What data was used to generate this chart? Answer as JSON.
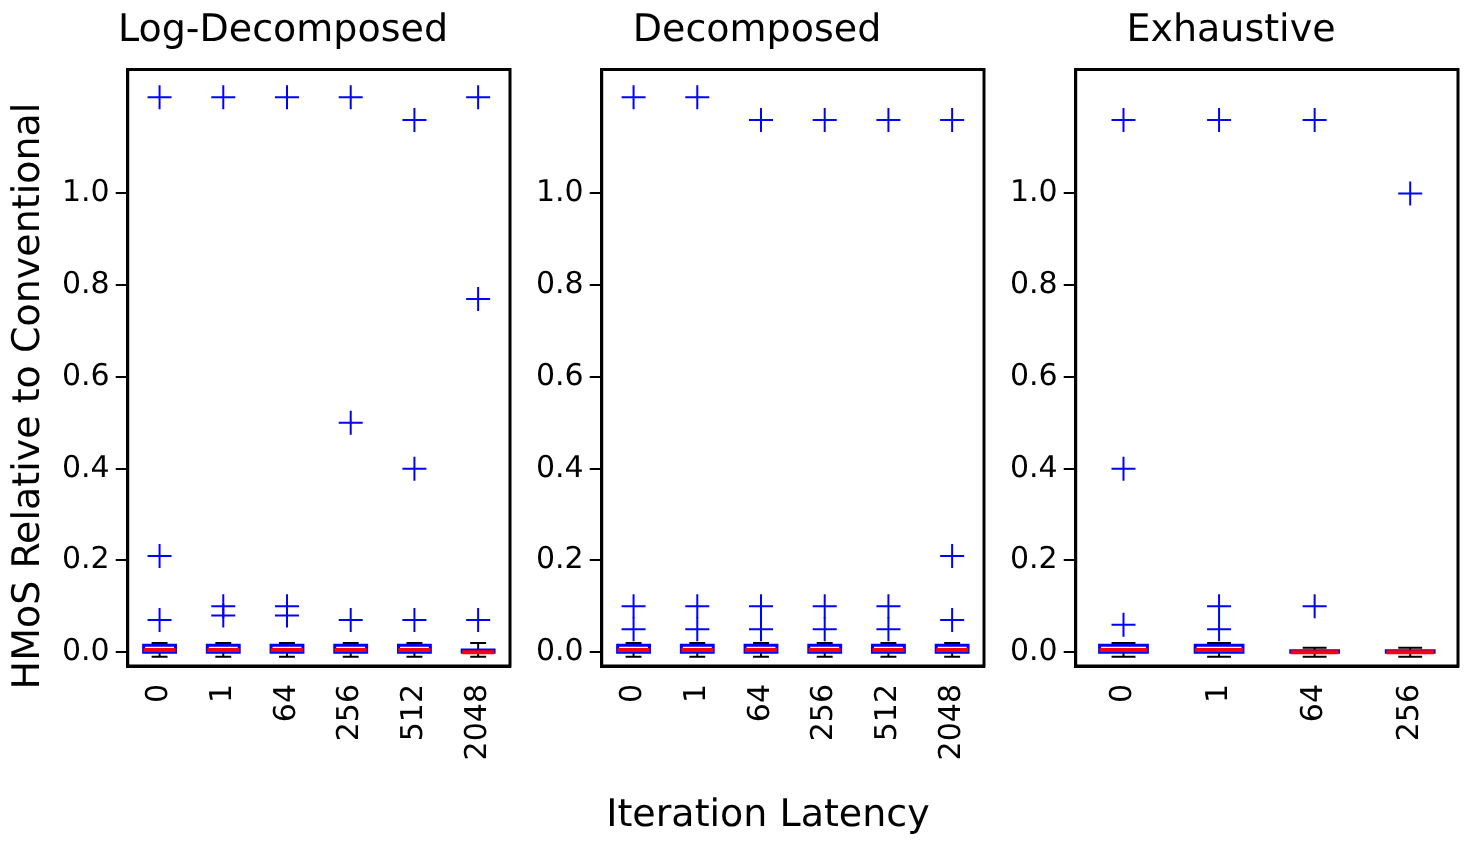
{
  "chart_data": [
    {
      "type": "box",
      "title": "Log-Decomposed",
      "ylabel": "HMoS Relative to Conventional",
      "categories": [
        "0",
        "1",
        "64",
        "256",
        "512",
        "2048"
      ],
      "ylim": [
        -0.03,
        1.27
      ],
      "yticks": [
        {
          "value": 0,
          "label": "0.0"
        },
        {
          "value": 0.2,
          "label": "0.2"
        },
        {
          "value": 0.4,
          "label": "0.4"
        },
        {
          "value": 0.6,
          "label": "0.6"
        },
        {
          "value": 0.8,
          "label": "0.8"
        },
        {
          "value": 1,
          "label": "1.0"
        }
      ],
      "grid": false,
      "boxes": [
        {
          "low": -0.01,
          "q1": 0,
          "median": 0.005,
          "q3": 0.015,
          "high": 0.02,
          "outliers": [
            1.21,
            0.21,
            0.07
          ]
        },
        {
          "low": -0.01,
          "q1": 0,
          "median": 0.005,
          "q3": 0.015,
          "high": 0.02,
          "outliers": [
            1.21,
            0.1,
            0.08
          ]
        },
        {
          "low": -0.01,
          "q1": 0,
          "median": 0.005,
          "q3": 0.015,
          "high": 0.02,
          "outliers": [
            1.21,
            0.1,
            0.08
          ]
        },
        {
          "low": -0.01,
          "q1": 0,
          "median": 0.005,
          "q3": 0.015,
          "high": 0.02,
          "outliers": [
            1.21,
            0.5,
            0.07
          ]
        },
        {
          "low": -0.01,
          "q1": 0,
          "median": 0.005,
          "q3": 0.015,
          "high": 0.02,
          "outliers": [
            1.16,
            0.4,
            0.07
          ]
        },
        {
          "low": -0.01,
          "q1": 0,
          "median": 0,
          "q3": 0.005,
          "high": 0.02,
          "outliers": [
            1.21,
            0.77,
            0.07
          ]
        }
      ]
    },
    {
      "type": "box",
      "title": "Decomposed",
      "xlabel": "Iteration Latency",
      "categories": [
        "0",
        "1",
        "64",
        "256",
        "512",
        "2048"
      ],
      "ylim": [
        -0.03,
        1.27
      ],
      "yticks": [
        {
          "value": 0,
          "label": "0.0"
        },
        {
          "value": 0.2,
          "label": "0.2"
        },
        {
          "value": 0.4,
          "label": "0.4"
        },
        {
          "value": 0.6,
          "label": "0.6"
        },
        {
          "value": 0.8,
          "label": "0.8"
        },
        {
          "value": 1,
          "label": "1.0"
        }
      ],
      "grid": false,
      "boxes": [
        {
          "low": -0.01,
          "q1": 0,
          "median": 0.005,
          "q3": 0.015,
          "high": 0.02,
          "outliers": [
            1.21,
            0.1,
            0.05
          ]
        },
        {
          "low": -0.01,
          "q1": 0,
          "median": 0.005,
          "q3": 0.015,
          "high": 0.02,
          "outliers": [
            1.21,
            0.1,
            0.05
          ]
        },
        {
          "low": -0.01,
          "q1": 0,
          "median": 0.005,
          "q3": 0.015,
          "high": 0.02,
          "outliers": [
            1.16,
            0.1,
            0.05
          ]
        },
        {
          "low": -0.01,
          "q1": 0,
          "median": 0.005,
          "q3": 0.015,
          "high": 0.02,
          "outliers": [
            1.16,
            0.1,
            0.05
          ]
        },
        {
          "low": -0.01,
          "q1": 0,
          "median": 0.005,
          "q3": 0.015,
          "high": 0.02,
          "outliers": [
            1.16,
            0.1,
            0.05
          ]
        },
        {
          "low": -0.01,
          "q1": 0,
          "median": 0.005,
          "q3": 0.015,
          "high": 0.02,
          "outliers": [
            1.16,
            0.21,
            0.07
          ]
        }
      ]
    },
    {
      "type": "box",
      "title": "Exhaustive",
      "categories": [
        "0",
        "1",
        "64",
        "256"
      ],
      "ylim": [
        -0.03,
        1.27
      ],
      "yticks": [
        {
          "value": 0,
          "label": "0.0"
        },
        {
          "value": 0.2,
          "label": "0.2"
        },
        {
          "value": 0.4,
          "label": "0.4"
        },
        {
          "value": 0.6,
          "label": "0.6"
        },
        {
          "value": 0.8,
          "label": "0.8"
        },
        {
          "value": 1,
          "label": "1.0"
        }
      ],
      "grid": false,
      "boxes": [
        {
          "low": -0.01,
          "q1": 0,
          "median": 0.005,
          "q3": 0.015,
          "high": 0.02,
          "outliers": [
            1.16,
            0.4,
            0.06
          ]
        },
        {
          "low": -0.01,
          "q1": 0,
          "median": 0.005,
          "q3": 0.015,
          "high": 0.02,
          "outliers": [
            1.16,
            0.1,
            0.05
          ]
        },
        {
          "low": -0.01,
          "q1": 0,
          "median": 0,
          "q3": 0.003,
          "high": 0.01,
          "outliers": [
            1.16,
            0.1
          ]
        },
        {
          "low": -0.01,
          "q1": 0,
          "median": 0,
          "q3": 0.003,
          "high": 0.01,
          "outliers": [
            1
          ]
        }
      ]
    }
  ]
}
